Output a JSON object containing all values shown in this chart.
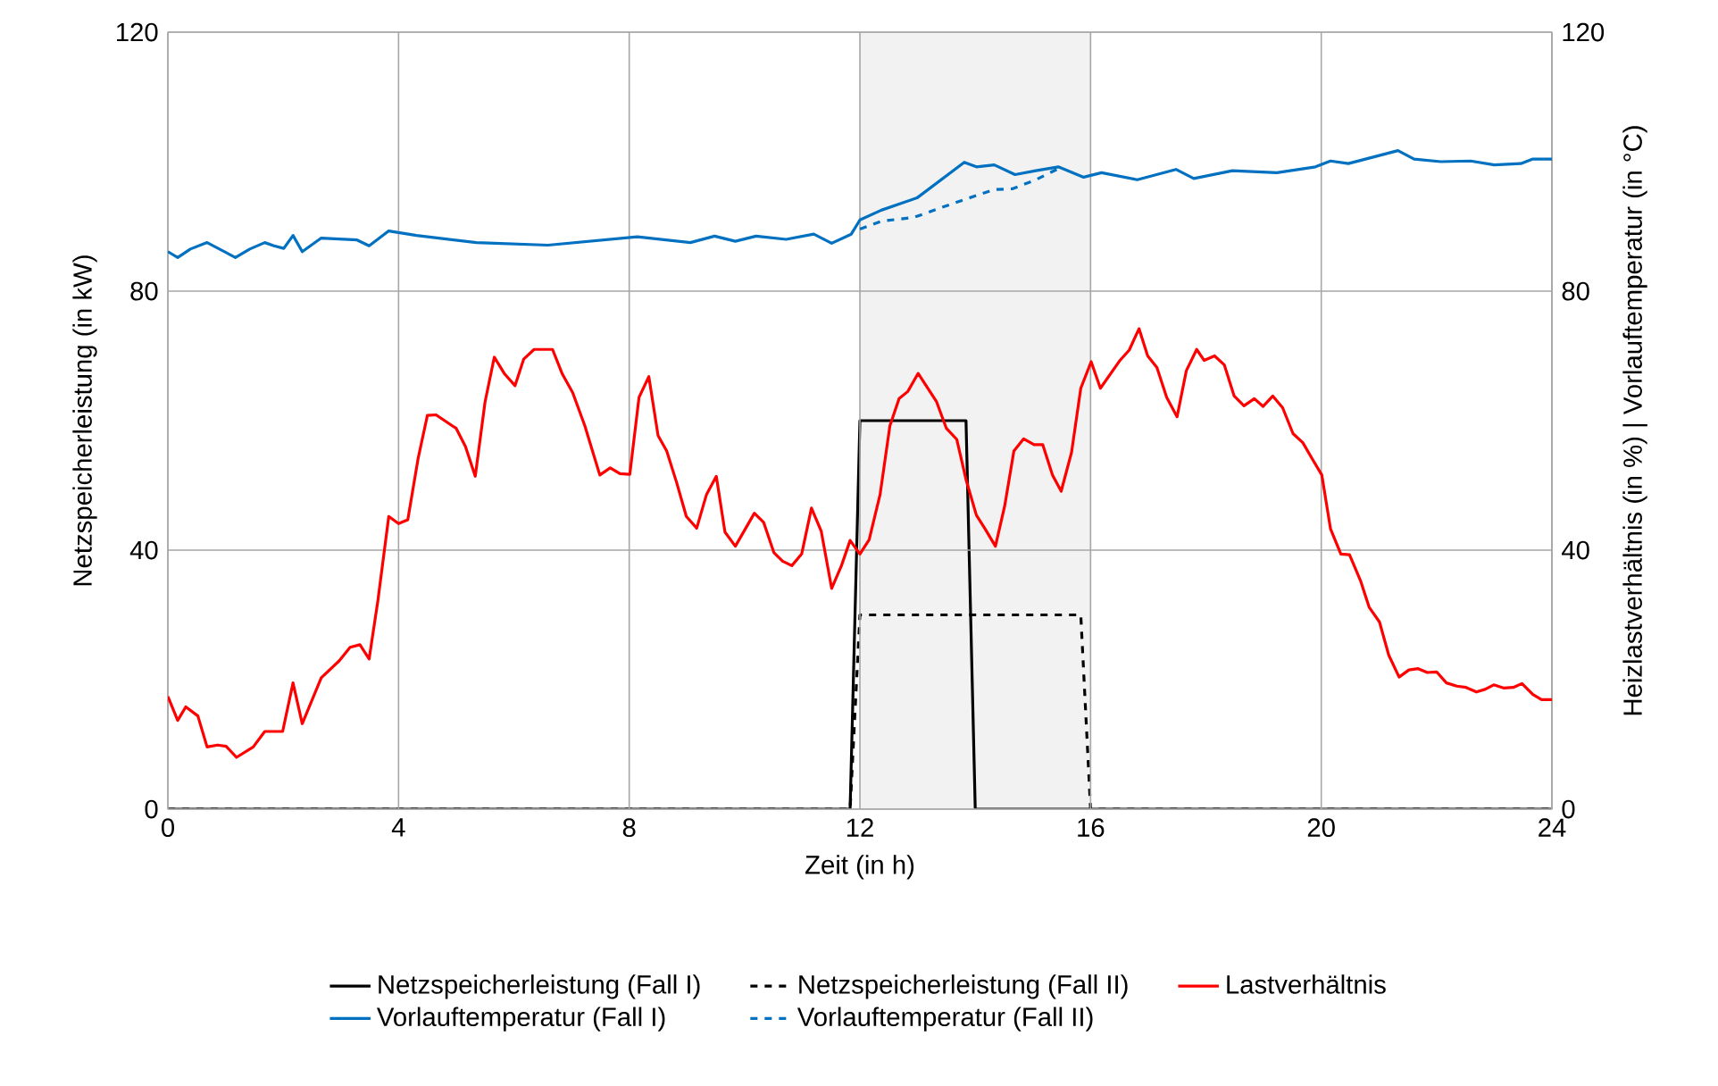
{
  "chart_data": {
    "type": "line",
    "xlabel": "Zeit (in h)",
    "ylabel": "Netzspeicherleistung (in kW)",
    "y2label": "Heizlastverhältnis (in %) | Vorlauftemperatur (in °C)",
    "xlim": [
      0,
      24
    ],
    "xticks": [
      0,
      4,
      8,
      12,
      16,
      20,
      24
    ],
    "ylim": [
      0,
      120
    ],
    "yticks": [
      0,
      40,
      80,
      120
    ],
    "y2lim": [
      0,
      120
    ],
    "y2ticks": [
      0,
      40,
      80,
      120
    ],
    "grid": true,
    "legend": "bottom",
    "bands": [
      {
        "axis": "x",
        "from": 12,
        "to": 16,
        "color": "#f2f2f2"
      }
    ],
    "series": [
      {
        "name": "Netzspeicherleistung (Fall I)",
        "color": "#000000",
        "line_style": "solid",
        "x": [
          0,
          11.83,
          12,
          13.84,
          14,
          24
        ],
        "values": [
          0,
          0,
          60,
          60,
          0,
          0
        ]
      },
      {
        "name": "Netzspeicherleistung (Fall II)",
        "color": "#000000",
        "line_style": "dashed",
        "x": [
          0,
          11.83,
          12,
          15.83,
          16,
          24
        ],
        "values": [
          0,
          0,
          30,
          30,
          0,
          0
        ]
      },
      {
        "name": "Lastverhältnis",
        "color": "#ff0000",
        "line_style": "solid",
        "axis": "y2",
        "x": [
          0,
          0.17,
          0.31,
          0.52,
          0.68,
          0.86,
          1.01,
          1.19,
          1.48,
          1.68,
          1.99,
          2.17,
          2.33,
          2.66,
          2.97,
          3.16,
          3.33,
          3.49,
          3.64,
          3.83,
          4.0,
          4.16,
          4.34,
          4.5,
          4.65,
          5.0,
          5.16,
          5.33,
          5.5,
          5.66,
          5.84,
          6.02,
          6.17,
          6.35,
          6.67,
          6.84,
          7.02,
          7.23,
          7.49,
          7.67,
          7.84,
          8.01,
          8.17,
          8.34,
          8.5,
          8.65,
          8.82,
          8.99,
          9.17,
          9.34,
          9.51,
          9.66,
          9.84,
          10.17,
          10.33,
          10.51,
          10.66,
          10.82,
          10.99,
          11.16,
          11.33,
          11.51,
          11.68,
          11.83,
          12.0,
          12.16,
          12.35,
          12.52,
          12.68,
          12.83,
          13.01,
          13.33,
          13.5,
          13.68,
          13.84,
          14.02,
          14.17,
          14.35,
          14.51,
          14.67,
          14.84,
          15.02,
          15.17,
          15.34,
          15.49,
          15.67,
          15.83,
          16.01,
          16.17,
          16.5,
          16.67,
          16.84,
          16.99,
          17.15,
          17.32,
          17.5,
          17.66,
          17.84,
          17.97,
          18.15,
          18.32,
          18.49,
          18.66,
          18.84,
          18.99,
          19.16,
          19.33,
          19.51,
          19.68,
          19.85,
          20.01,
          20.16,
          20.34,
          20.49,
          20.68,
          20.83,
          21.01,
          21.17,
          21.35,
          21.52,
          21.68,
          21.84,
          22.0,
          22.17,
          22.35,
          22.51,
          22.69,
          22.84,
          22.99,
          23.17,
          23.33,
          23.48,
          23.67,
          23.82,
          24.0
        ],
        "values": [
          17.4,
          13.7,
          15.8,
          14.4,
          9.6,
          9.9,
          9.7,
          8.0,
          9.6,
          12.0,
          12.0,
          19.5,
          13.2,
          20.3,
          22.9,
          25.0,
          25.4,
          23.2,
          32.1,
          45.2,
          44.1,
          44.7,
          54.2,
          60.8,
          60.9,
          58.8,
          56.0,
          51.4,
          62.9,
          69.8,
          67.2,
          65.4,
          69.5,
          71.0,
          71.0,
          67.2,
          64.3,
          59.2,
          51.6,
          52.7,
          51.8,
          51.7,
          63.6,
          66.8,
          57.7,
          55.3,
          50.5,
          45.2,
          43.4,
          48.6,
          51.4,
          42.8,
          40.6,
          45.7,
          44.3,
          39.6,
          38.3,
          37.6,
          39.4,
          46.5,
          42.9,
          34.1,
          37.6,
          41.5,
          39.4,
          41.6,
          48.6,
          59.2,
          63.4,
          64.5,
          67.3,
          62.9,
          58.8,
          57.1,
          50.9,
          45.4,
          43.3,
          40.6,
          46.8,
          55.3,
          57.2,
          56.3,
          56.3,
          51.6,
          49.1,
          55.1,
          65.0,
          69.1,
          65.0,
          69.2,
          70.9,
          74.2,
          70.0,
          68.2,
          63.6,
          60.6,
          67.7,
          71.0,
          69.3,
          70.0,
          68.6,
          63.8,
          62.3,
          63.4,
          62.2,
          63.8,
          62.0,
          58.0,
          56.6,
          54.0,
          51.6,
          43.3,
          39.4,
          39.3,
          35.3,
          31.2,
          28.9,
          23.8,
          20.4,
          21.5,
          21.7,
          21.1,
          21.2,
          19.5,
          19.0,
          18.8,
          18.1,
          18.5,
          19.2,
          18.7,
          18.8,
          19.4,
          17.7,
          16.9,
          16.9
        ]
      },
      {
        "name": "Vorlauftemperatur (Fall I)",
        "color": "#0070c0",
        "line_style": "solid",
        "axis": "y2",
        "x": [
          0,
          0.17,
          0.39,
          0.68,
          1.17,
          1.42,
          1.68,
          1.84,
          2.01,
          2.17,
          2.33,
          2.66,
          3.28,
          3.49,
          3.83,
          4.31,
          5.35,
          6.59,
          8.14,
          9.06,
          9.48,
          9.84,
          10.2,
          10.72,
          11.2,
          11.51,
          11.85,
          12.0,
          12.37,
          12.99,
          13.81,
          14.02,
          14.33,
          14.69,
          15.05,
          15.44,
          15.88,
          16.19,
          16.81,
          17.48,
          17.79,
          18.46,
          19.23,
          19.9,
          20.16,
          20.47,
          21.33,
          21.61,
          22.07,
          22.59,
          23.0,
          23.46,
          23.67,
          24.0
        ],
        "values": [
          86.1,
          85.2,
          86.5,
          87.5,
          85.2,
          86.5,
          87.5,
          87.0,
          86.6,
          88.6,
          86.1,
          88.2,
          87.9,
          87.0,
          89.3,
          88.6,
          87.5,
          87.1,
          88.4,
          87.5,
          88.5,
          87.7,
          88.5,
          88.0,
          88.8,
          87.4,
          88.8,
          91.0,
          92.5,
          94.4,
          99.9,
          99.2,
          99.5,
          98.0,
          98.6,
          99.2,
          97.6,
          98.3,
          97.2,
          98.8,
          97.4,
          98.6,
          98.3,
          99.2,
          100.1,
          99.7,
          101.7,
          100.4,
          100.0,
          100.1,
          99.5,
          99.7,
          100.4,
          100.4
        ]
      },
      {
        "name": "Vorlauftemperatur (Fall II)",
        "color": "#0070c0",
        "line_style": "dashed",
        "axis": "y2",
        "x": [
          12.0,
          12.37,
          12.94,
          13.6,
          14.33,
          14.64,
          15.05,
          15.46
        ],
        "values": [
          89.6,
          90.8,
          91.4,
          93.5,
          95.7,
          95.8,
          97.2,
          99.0
        ]
      }
    ]
  }
}
